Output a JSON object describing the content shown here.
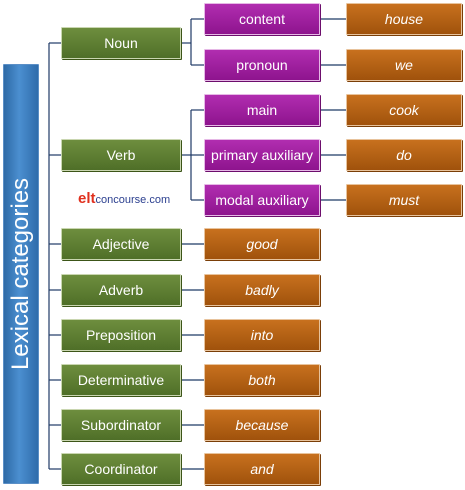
{
  "title": "Lexical categories",
  "logo": {
    "part1": "elt",
    "part2": "concourse.com"
  },
  "categories": {
    "noun": "Noun",
    "verb": "Verb",
    "adjective": "Adjective",
    "adverb": "Adverb",
    "preposition": "Preposition",
    "determinative": "Determinative",
    "subordinator": "Subordinator",
    "coordinator": "Coordinator"
  },
  "subcategories": {
    "content": "content",
    "pronoun": "pronoun",
    "main": "main",
    "primary_auxiliary": "primary auxiliary",
    "modal_auxiliary": "modal auxiliary"
  },
  "examples": {
    "content": "house",
    "pronoun": "we",
    "main": "cook",
    "primary_auxiliary": "do",
    "modal_auxiliary": "must",
    "adjective": "good",
    "adverb": "badly",
    "preposition": "into",
    "determinative": "both",
    "subordinator": "because",
    "coordinator": "and"
  },
  "colors": {
    "root": "#3b7bbf",
    "category": "#5a7a30",
    "subcategory": "#a21fa2",
    "example": "#b5621a",
    "connector": "#1f3a66"
  }
}
